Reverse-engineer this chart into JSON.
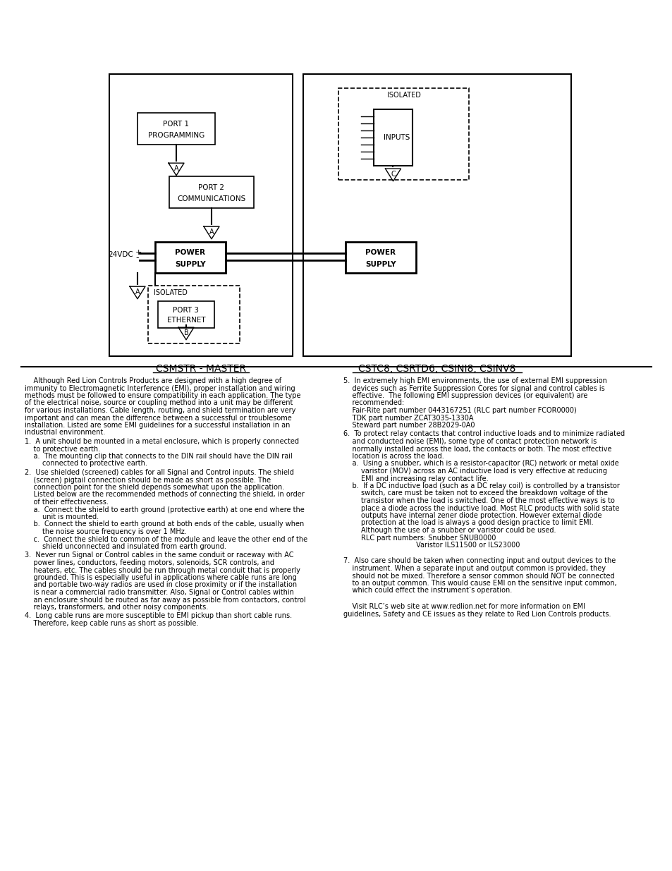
{
  "bg_color": "#ffffff",
  "left_panel_label": "CSMSTR - MASTER",
  "right_panel_label": "CSTC8, CSRTD6, CSINI8, CSINV8"
}
